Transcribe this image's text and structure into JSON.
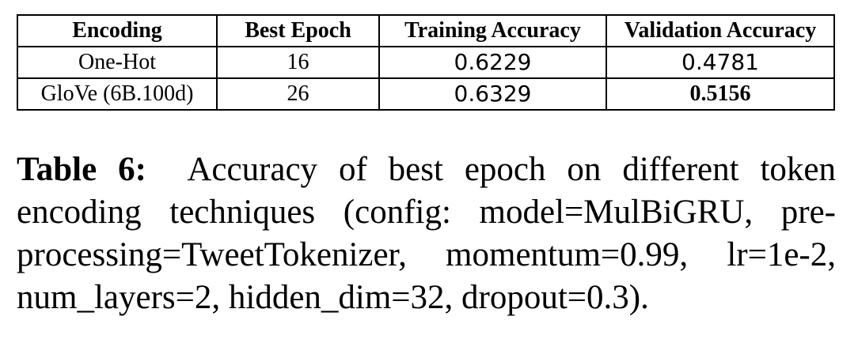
{
  "table": {
    "headers": [
      "Encoding",
      "Best Epoch",
      "Training Accuracy",
      "Validation Accuracy"
    ],
    "rows": [
      {
        "encoding": "One-Hot",
        "best_epoch": "16",
        "training_accuracy": "0.6229",
        "validation_accuracy": "0.4781",
        "bold_validation": false
      },
      {
        "encoding": "GloVe (6B.100d)",
        "best_epoch": "26",
        "training_accuracy": "0.6329",
        "validation_accuracy": "0.5156",
        "bold_validation": true
      }
    ]
  },
  "caption": {
    "label": "Table 6:",
    "text": "Accuracy of best epoch on different token encoding techniques (config: model=MulBiGRU, pre-processing=TweetTokenizer, momentum=0.99, lr=1e-2, num_layers=2, hidden_dim=32, dropout=0.3)."
  }
}
